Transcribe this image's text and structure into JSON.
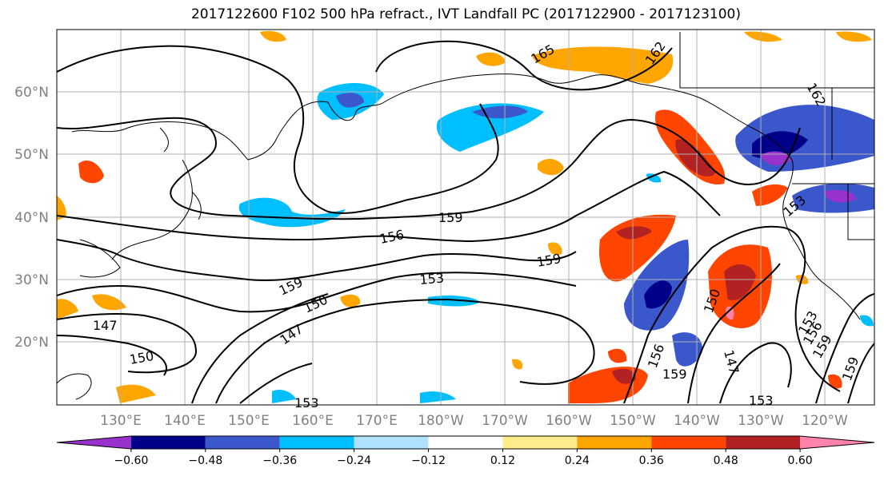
{
  "title": "2017122600 F102 500 hPa refract., IVT Landfall PC (2017122900 - 2017123100)",
  "map": {
    "lat_labels": [
      "60°N",
      "50°N",
      "40°N",
      "30°N",
      "20°N"
    ],
    "lon_labels": [
      "130°E",
      "140°E",
      "150°E",
      "160°E",
      "170°E",
      "180°W",
      "170°W",
      "160°W",
      "150°W",
      "140°W",
      "130°W",
      "120°W"
    ],
    "contour_labels": [
      "165",
      "162",
      "162",
      "159",
      "156",
      "159",
      "159",
      "153",
      "150",
      "147",
      "147",
      "150",
      "153",
      "156",
      "159",
      "150",
      "147",
      "153",
      "156",
      "153",
      "159",
      "153",
      "159"
    ]
  },
  "colorbar": {
    "colors": [
      "#9932CC",
      "#00008B",
      "#3A58CC",
      "#00BFFF",
      "#B0E2FF",
      "#FFFFFF",
      "#FFEC8B",
      "#FFA500",
      "#FF4500",
      "#B22222",
      "#FF82AB"
    ],
    "labels": [
      "-0.60",
      "-0.48",
      "-0.36",
      "-0.24",
      "-0.12",
      "0.12",
      "0.24",
      "0.36",
      "0.48",
      "0.60"
    ]
  }
}
